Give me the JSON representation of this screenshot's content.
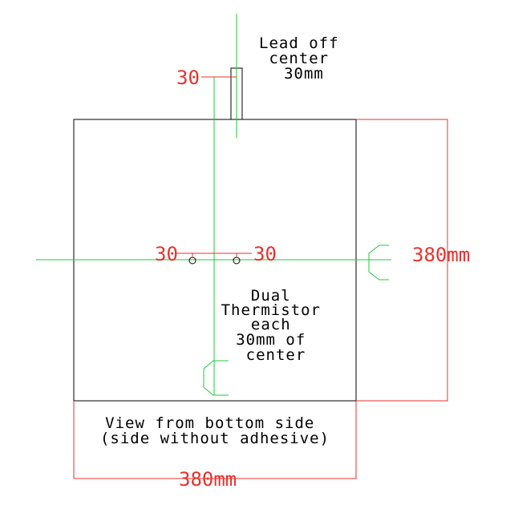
{
  "colors": {
    "outline": "#000000",
    "centerline": "#22c83a",
    "dimension": "#e8322e",
    "background": "#ffffff"
  },
  "labels": {
    "lead_note": [
      "Lead off",
      "center",
      "30mm"
    ],
    "lead_offset": "30",
    "thermistor_left_offset": "30",
    "thermistor_right_offset": "30",
    "thermistor_note": [
      "Dual",
      "Thermistor",
      "each",
      "30mm of",
      "center"
    ],
    "height_dimension": "380mm",
    "width_dimension": "380mm",
    "view_note": [
      "View from bottom side",
      "(side without adhesive)"
    ]
  },
  "centerline_symbols": [
    "C",
    "C"
  ]
}
